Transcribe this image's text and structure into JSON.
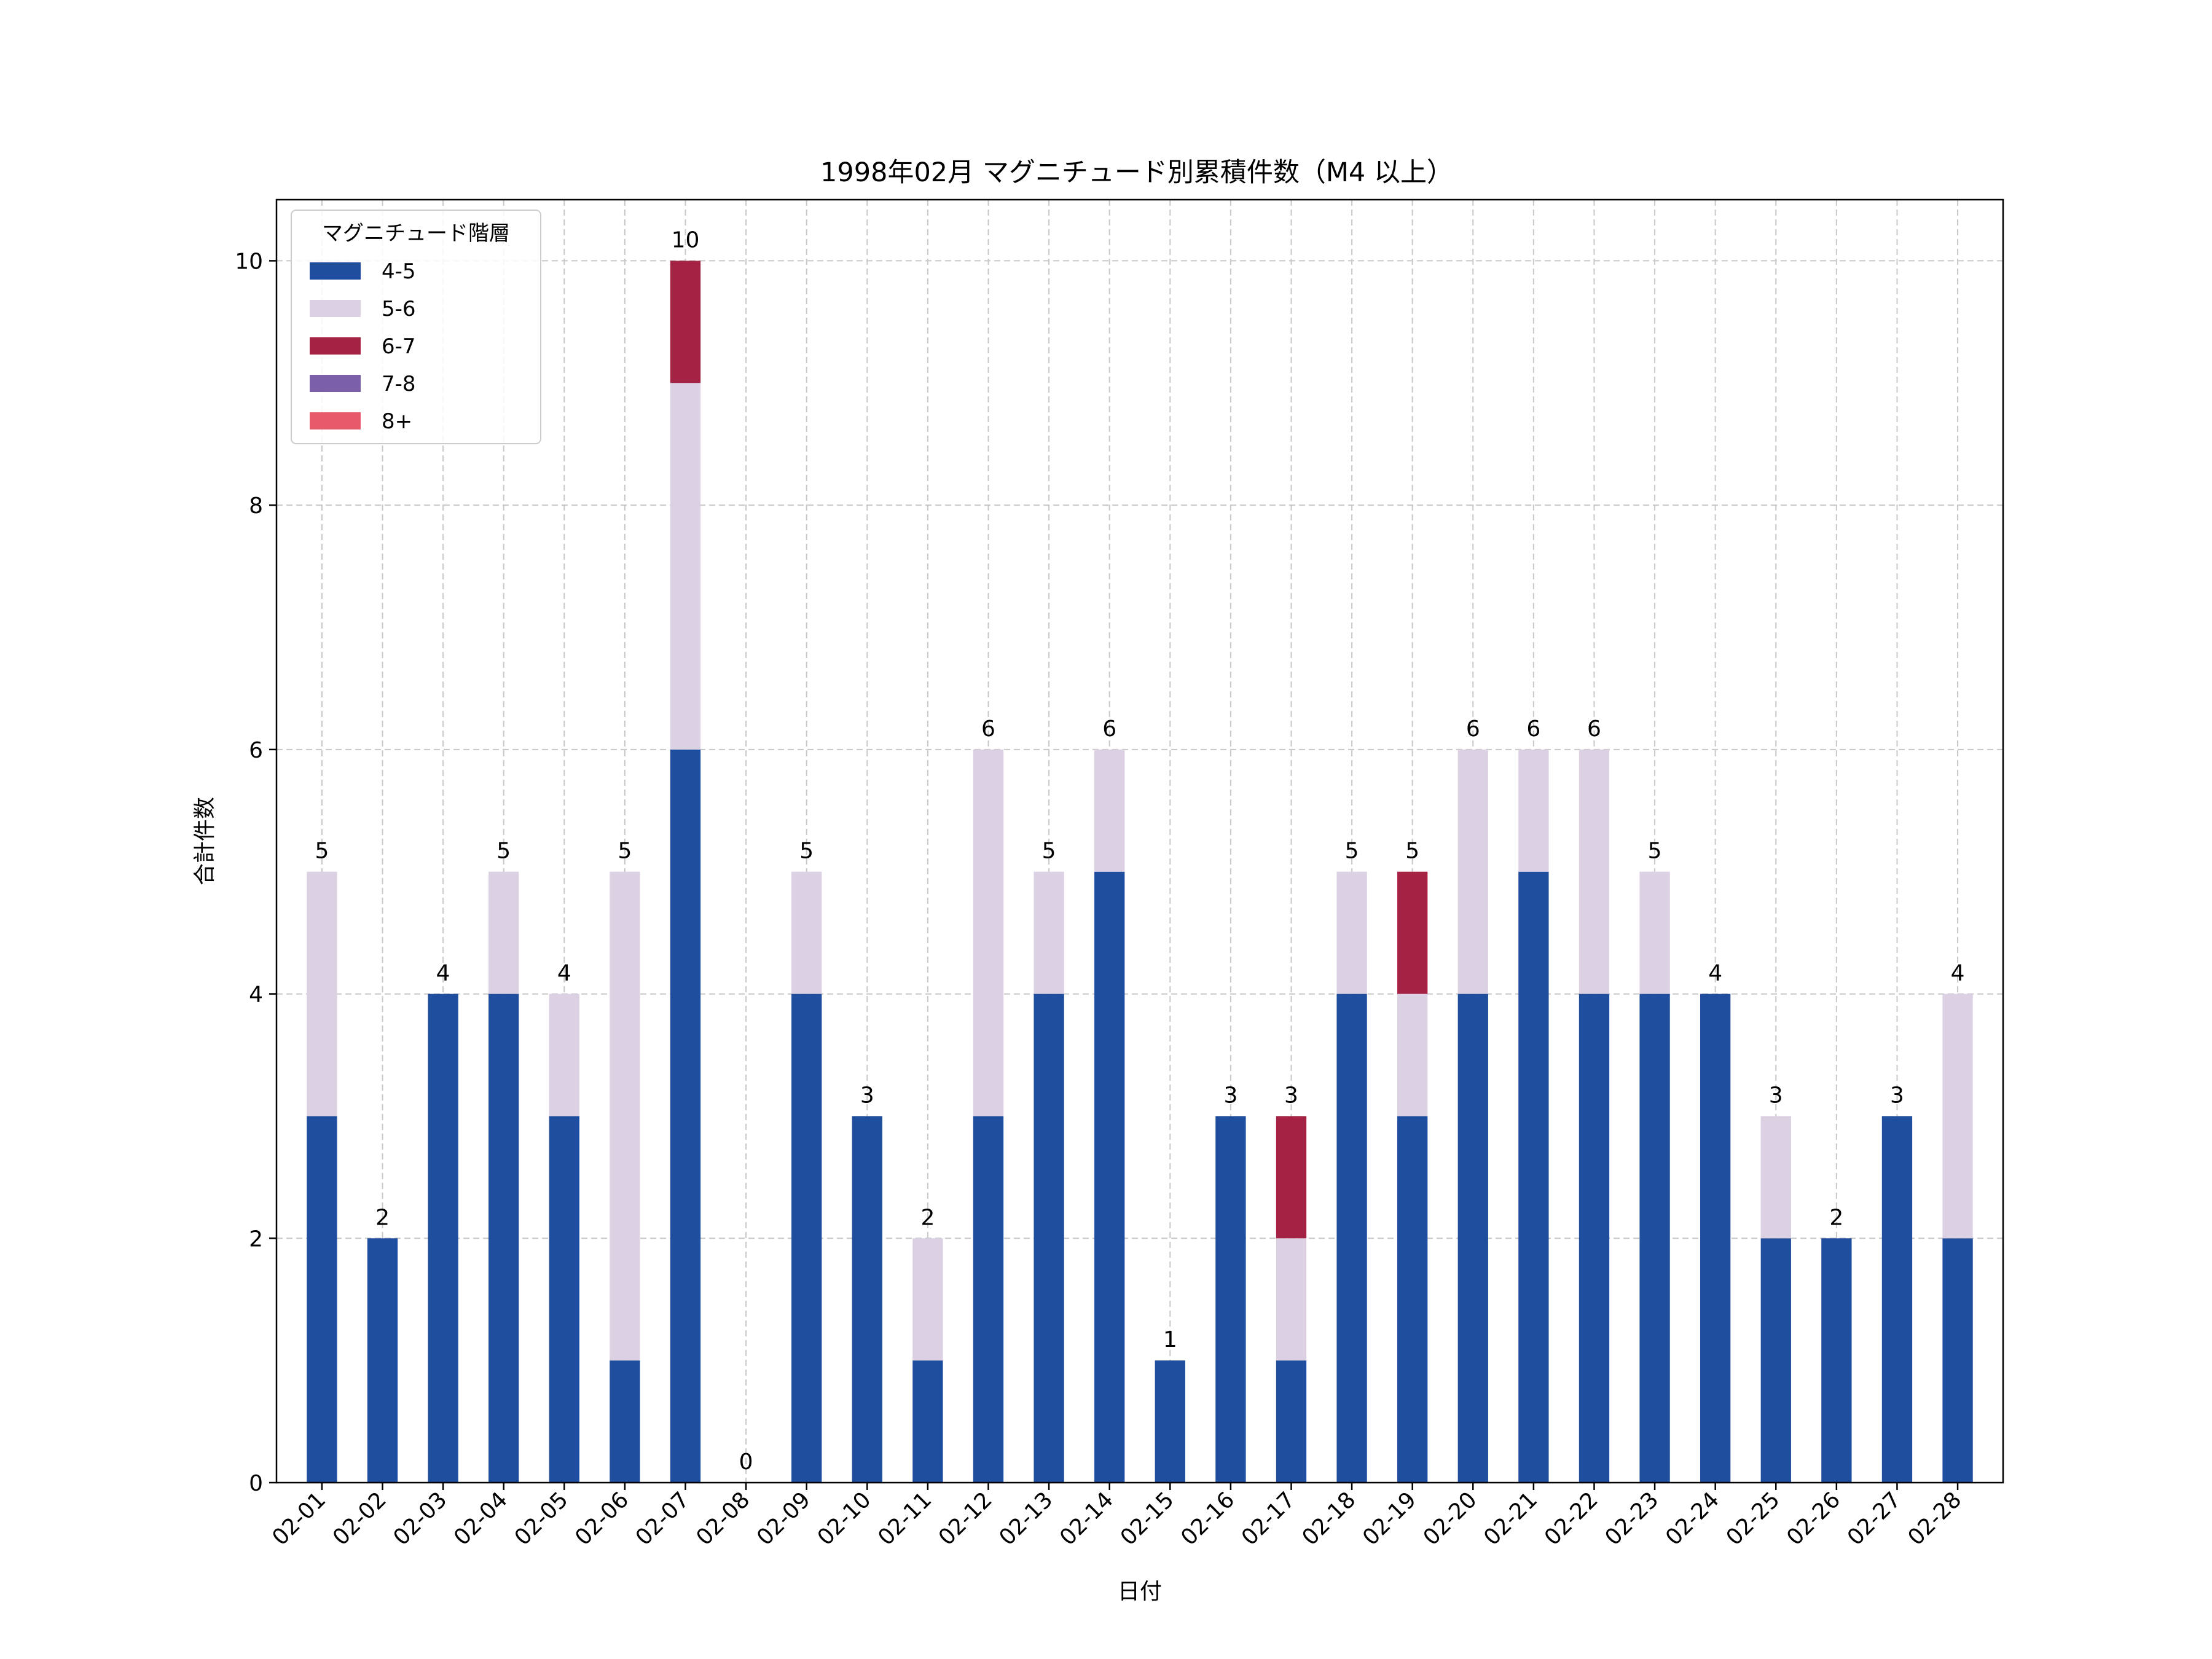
{
  "chart_data": {
    "type": "bar",
    "stacked": true,
    "title": "1998年02月 マグニチュード別累積件数（M4 以上）",
    "xlabel": "日付",
    "ylabel": "合計件数",
    "ylim": [
      0,
      10.5
    ],
    "yticks": [
      0,
      2,
      4,
      6,
      8,
      10
    ],
    "grid": true,
    "legend_placement": "top-left",
    "legend_title": "マグニチュード階層",
    "categories": [
      "02-01",
      "02-02",
      "02-03",
      "02-04",
      "02-05",
      "02-06",
      "02-07",
      "02-08",
      "02-09",
      "02-10",
      "02-11",
      "02-12",
      "02-13",
      "02-14",
      "02-15",
      "02-16",
      "02-17",
      "02-18",
      "02-19",
      "02-20",
      "02-21",
      "02-22",
      "02-23",
      "02-24",
      "02-25",
      "02-26",
      "02-27",
      "02-28"
    ],
    "series": [
      {
        "name": "4-5",
        "color": "#1f4e9e",
        "values": [
          3,
          2,
          4,
          4,
          3,
          1,
          6,
          0,
          4,
          3,
          1,
          3,
          4,
          5,
          1,
          3,
          1,
          4,
          3,
          4,
          5,
          4,
          4,
          4,
          2,
          2,
          3,
          2
        ]
      },
      {
        "name": "5-6",
        "color": "#dcd0e3",
        "values": [
          2,
          0,
          0,
          1,
          1,
          4,
          3,
          0,
          1,
          0,
          1,
          3,
          1,
          1,
          0,
          0,
          1,
          1,
          1,
          2,
          1,
          2,
          1,
          0,
          1,
          0,
          0,
          2
        ]
      },
      {
        "name": "6-7",
        "color": "#a52245",
        "values": [
          0,
          0,
          0,
          0,
          0,
          0,
          1,
          0,
          0,
          0,
          0,
          0,
          0,
          0,
          0,
          0,
          1,
          0,
          1,
          0,
          0,
          0,
          0,
          0,
          0,
          0,
          0,
          0
        ]
      },
      {
        "name": "7-8",
        "color": "#7b5fa8",
        "values": [
          0,
          0,
          0,
          0,
          0,
          0,
          0,
          0,
          0,
          0,
          0,
          0,
          0,
          0,
          0,
          0,
          0,
          0,
          0,
          0,
          0,
          0,
          0,
          0,
          0,
          0,
          0,
          0
        ]
      },
      {
        "name": "8+",
        "color": "#e85a6b",
        "values": [
          0,
          0,
          0,
          0,
          0,
          0,
          0,
          0,
          0,
          0,
          0,
          0,
          0,
          0,
          0,
          0,
          0,
          0,
          0,
          0,
          0,
          0,
          0,
          0,
          0,
          0,
          0,
          0
        ]
      }
    ],
    "totals": [
      5,
      2,
      4,
      5,
      4,
      5,
      10,
      0,
      5,
      3,
      2,
      6,
      5,
      6,
      1,
      3,
      3,
      5,
      5,
      6,
      6,
      6,
      5,
      4,
      3,
      2,
      3,
      4
    ]
  }
}
